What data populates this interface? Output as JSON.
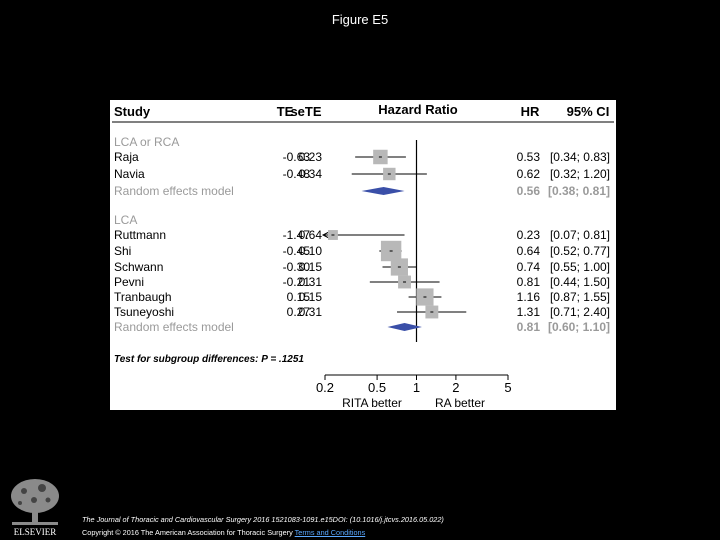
{
  "figure_title": "Figure E5",
  "chart_data": {
    "type": "forest",
    "columns": {
      "study": "Study",
      "te": "TE",
      "sete": "seTE",
      "plot": "Hazard Ratio",
      "hr": "HR",
      "ci": "95% CI"
    },
    "x_ticks": [
      "0.2",
      "0.5",
      "1",
      "2",
      "5"
    ],
    "x_tick_values": [
      0.2,
      0.5,
      1,
      2,
      5
    ],
    "xlim": [
      0.2,
      5
    ],
    "x_scale": "log",
    "x_left_label": "RITA better",
    "x_right_label": "RA better",
    "subgroups": [
      {
        "name": "LCA or RCA",
        "studies": [
          {
            "name": "Raja",
            "te": "-0.63",
            "sete": "0.23",
            "hr": "0.53",
            "ci": "[0.34; 0.83]",
            "hr_value": 0.53,
            "lo": 0.34,
            "hi": 0.83
          },
          {
            "name": "Navia",
            "te": "-0.48",
            "sete": "0.34",
            "hr": "0.62",
            "ci": "[0.32; 1.20]",
            "hr_value": 0.62,
            "lo": 0.32,
            "hi": 1.2
          }
        ],
        "random_effects": {
          "label": "Random effects model",
          "hr": "0.56",
          "ci": "[0.38; 0.81]",
          "hr_value": 0.56,
          "lo": 0.38,
          "hi": 0.81
        }
      },
      {
        "name": "LCA",
        "studies": [
          {
            "name": "Ruttmann",
            "te": "-1.47",
            "sete": "0.64",
            "hr": "0.23",
            "ci": "[0.07; 0.81]",
            "hr_value": 0.23,
            "lo": 0.07,
            "hi": 0.81
          },
          {
            "name": "Shi",
            "te": "-0.45",
            "sete": "0.10",
            "hr": "0.64",
            "ci": "[0.52; 0.77]",
            "hr_value": 0.64,
            "lo": 0.52,
            "hi": 0.77
          },
          {
            "name": "Schwann",
            "te": "-0.30",
            "sete": "0.15",
            "hr": "0.74",
            "ci": "[0.55; 1.00]",
            "hr_value": 0.74,
            "lo": 0.55,
            "hi": 1.0
          },
          {
            "name": "Pevni",
            "te": "-0.21",
            "sete": "0.31",
            "hr": "0.81",
            "ci": "[0.44; 1.50]",
            "hr_value": 0.81,
            "lo": 0.44,
            "hi": 1.5
          },
          {
            "name": "Tranbaugh",
            "te": "0.15",
            "sete": "0.15",
            "hr": "1.16",
            "ci": "[0.87; 1.55]",
            "hr_value": 1.16,
            "lo": 0.87,
            "hi": 1.55
          },
          {
            "name": "Tsuneyoshi",
            "te": "0.27",
            "sete": "0.31",
            "hr": "1.31",
            "ci": "[0.71; 2.40]",
            "hr_value": 1.31,
            "lo": 0.71,
            "hi": 2.4
          }
        ],
        "random_effects": {
          "label": "Random effects model",
          "hr": "0.81",
          "ci": "[0.60; 1.10]",
          "hr_value": 0.81,
          "lo": 0.6,
          "hi": 1.1
        }
      }
    ],
    "subgroup_test": "Test for subgroup differences: P = .1251",
    "colors": {
      "study_box": "#b8b8b8",
      "diamond": "#3a4fa8",
      "subgroup_text": "#9a9a9a",
      "ci_line": "#000000"
    }
  },
  "footer": {
    "citation": "The Journal of Thoracic and Cardiovascular Surgery 2016 1521083-1091.e15DOI: (10.1016/j.jtcvs.2016.05.022)",
    "copyright": "Copyright © 2016 The American Association for Thoracic Surgery",
    "terms_link": "Terms and Conditions"
  },
  "logo": {
    "text": "ELSEVIER"
  }
}
